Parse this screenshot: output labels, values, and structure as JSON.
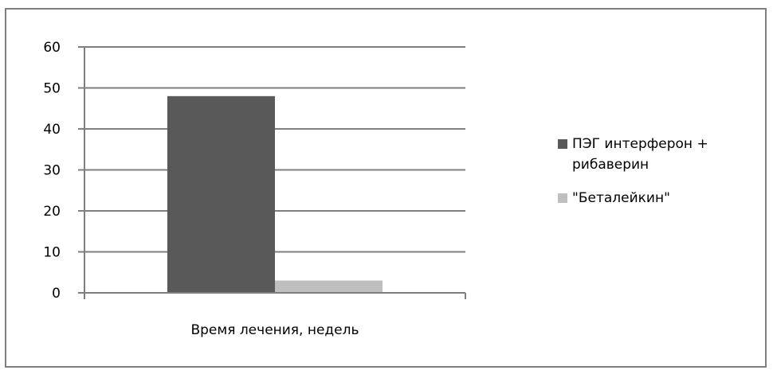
{
  "chart_data": {
    "type": "bar",
    "categories": [
      "Время лечения, недель"
    ],
    "xlabel": "",
    "ylabel": "",
    "ylim": [
      0,
      60
    ],
    "yticks": [
      0,
      10,
      20,
      30,
      40,
      50,
      60
    ],
    "grid": true,
    "legend_position": "right",
    "series": [
      {
        "name": "ПЭГ интерферон + рибаверин",
        "values": [
          48
        ],
        "color": "#595959"
      },
      {
        "name": "\"Беталейкин\"",
        "values": [
          3
        ],
        "color": "#bfbfbf"
      }
    ]
  },
  "colors": {
    "gridline": "#7f7f7f",
    "axis": "#7f7f7f",
    "frame": "#7f7f7f"
  }
}
